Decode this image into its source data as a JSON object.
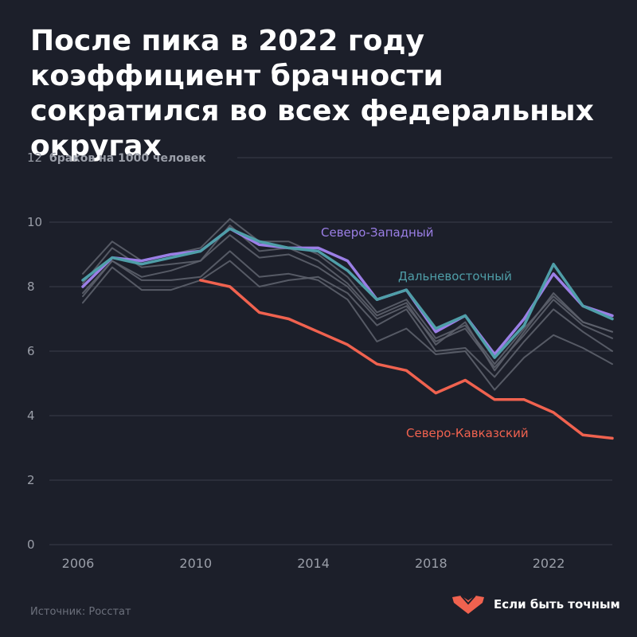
{
  "title": "После пика в 2022 году коэффициент брачности сократился во всех федеральных округах",
  "source": "Источник: Росстат",
  "brand": {
    "name": "Если быть точным"
  },
  "colors": {
    "background": "#1c1f2a",
    "grid": "#3a3e4a",
    "tick": "#9a9ea8",
    "gray_series": "#5d616c",
    "northwest": "#9b7fe6",
    "fareast": "#4f9ea8",
    "northcaucasus": "#f0624f",
    "brand": "#f0624f"
  },
  "chart_data": {
    "type": "line",
    "ylabel": "браков на 1000 человек",
    "ylim": [
      0,
      12
    ],
    "xlim": [
      2006,
      2024
    ],
    "yticks": [
      0,
      2,
      4,
      6,
      8,
      10,
      12
    ],
    "xticks": [
      2006,
      2010,
      2014,
      2018,
      2022
    ],
    "grid": "horizontal",
    "series": [
      {
        "name": "Северо-Западный",
        "color": "#9b7fe6",
        "highlight": true,
        "x": [
          2006,
          2007,
          2008,
          2009,
          2010,
          2011,
          2012,
          2013,
          2014,
          2015,
          2016,
          2017,
          2018,
          2019,
          2020,
          2021,
          2022,
          2023,
          2024
        ],
        "y": [
          8.0,
          8.9,
          8.8,
          9.0,
          9.1,
          9.8,
          9.3,
          9.2,
          9.2,
          8.8,
          7.6,
          7.9,
          6.6,
          7.1,
          5.9,
          7.0,
          8.4,
          7.4,
          7.1
        ]
      },
      {
        "name": "Дальневосточный",
        "color": "#4f9ea8",
        "highlight": true,
        "x": [
          2006,
          2007,
          2008,
          2009,
          2010,
          2011,
          2012,
          2013,
          2014,
          2015,
          2016,
          2017,
          2018,
          2019,
          2020,
          2021,
          2022,
          2023,
          2024
        ],
        "y": [
          8.2,
          8.9,
          8.7,
          8.9,
          9.1,
          9.8,
          9.4,
          9.2,
          9.1,
          8.5,
          7.6,
          7.9,
          6.7,
          7.1,
          5.8,
          6.8,
          8.7,
          7.4,
          7.0
        ]
      },
      {
        "name": "Северо-Кавказский",
        "color": "#f0624f",
        "highlight": true,
        "x": [
          2010,
          2011,
          2012,
          2013,
          2014,
          2015,
          2016,
          2017,
          2018,
          2019,
          2020,
          2021,
          2022,
          2023,
          2024
        ],
        "y": [
          8.2,
          8.0,
          7.2,
          7.0,
          6.6,
          6.2,
          5.6,
          5.4,
          4.7,
          5.1,
          4.5,
          4.5,
          4.1,
          3.4,
          3.3
        ]
      },
      {
        "color": "#5d616c",
        "x": [
          2006,
          2007,
          2008,
          2009,
          2010,
          2011,
          2012,
          2013,
          2014,
          2015,
          2016,
          2017,
          2018,
          2019,
          2020,
          2021,
          2022,
          2023,
          2024
        ],
        "y": [
          8.4,
          9.4,
          8.8,
          9.0,
          9.2,
          10.1,
          9.4,
          9.4,
          9.0,
          8.3,
          7.2,
          7.6,
          6.4,
          6.8,
          5.6,
          6.7,
          7.7,
          6.9,
          6.6
        ]
      },
      {
        "color": "#5d616c",
        "x": [
          2006,
          2007,
          2008,
          2009,
          2010,
          2011,
          2012,
          2013,
          2014,
          2015,
          2016,
          2017,
          2018,
          2019,
          2020,
          2021,
          2022,
          2023,
          2024
        ],
        "y": [
          7.8,
          8.8,
          8.3,
          8.5,
          8.8,
          9.6,
          8.9,
          9.0,
          8.6,
          8.0,
          7.0,
          7.4,
          6.3,
          6.7,
          5.5,
          6.5,
          7.6,
          6.8,
          6.4
        ]
      },
      {
        "color": "#5d616c",
        "x": [
          2006,
          2007,
          2008,
          2009,
          2010,
          2011,
          2012,
          2013,
          2014,
          2015,
          2016,
          2017,
          2018,
          2019,
          2020,
          2021,
          2022,
          2023,
          2024
        ],
        "y": [
          7.5,
          8.6,
          7.9,
          7.9,
          8.2,
          8.8,
          8.0,
          8.2,
          8.3,
          7.8,
          6.8,
          7.3,
          6.0,
          6.1,
          5.2,
          6.3,
          7.3,
          6.6,
          6.0
        ]
      },
      {
        "color": "#5d616c",
        "x": [
          2006,
          2007,
          2008,
          2009,
          2010,
          2011,
          2012,
          2013,
          2014,
          2015,
          2016,
          2017,
          2018,
          2019,
          2020,
          2021,
          2022,
          2023,
          2024
        ],
        "y": [
          7.7,
          8.8,
          8.2,
          8.2,
          8.3,
          9.1,
          8.3,
          8.4,
          8.2,
          7.6,
          6.3,
          6.7,
          5.9,
          6.0,
          4.8,
          5.8,
          6.5,
          6.1,
          5.6
        ]
      },
      {
        "color": "#5d616c",
        "x": [
          2006,
          2007,
          2008,
          2009,
          2010,
          2011,
          2012,
          2013,
          2014,
          2015,
          2016,
          2017,
          2018,
          2019,
          2020,
          2021,
          2022,
          2023,
          2024
        ],
        "y": [
          8.1,
          9.2,
          8.6,
          8.7,
          8.8,
          9.9,
          9.1,
          9.2,
          8.8,
          8.1,
          7.1,
          7.5,
          6.2,
          6.9,
          5.4,
          6.6,
          7.8,
          6.9,
          6.6
        ]
      }
    ],
    "annotations": [
      {
        "text": "Северо-Западный",
        "series": "Северо-Западный"
      },
      {
        "text": "Дальневосточный",
        "series": "Дальневосточный"
      },
      {
        "text": "Северо-Кавказский",
        "series": "Северо-Кавказский"
      }
    ]
  }
}
